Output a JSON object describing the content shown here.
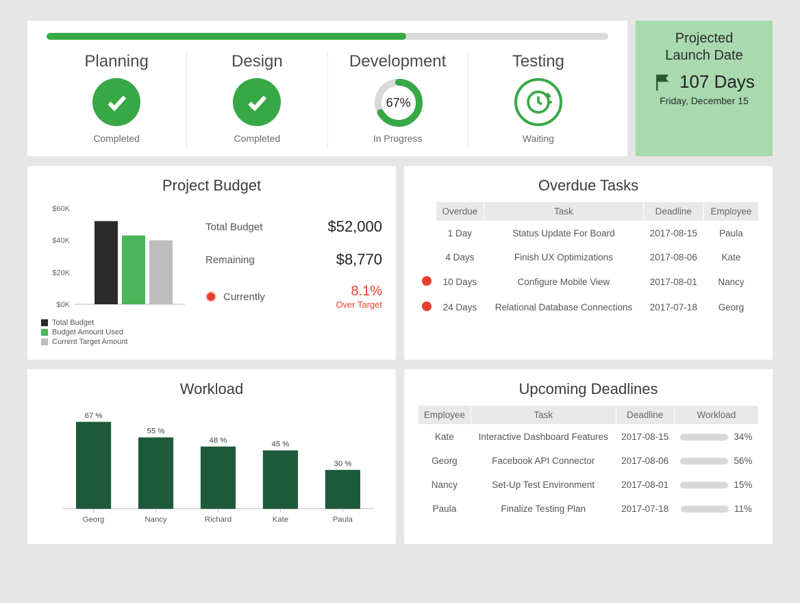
{
  "colors": {
    "green": "#37a845",
    "dark_green": "#22573b",
    "grey_bar": "#bdbdbd",
    "track": "#d9d9d9",
    "red": "#e83e2e",
    "yellow": "#e8b400",
    "launch_bg": "#a8d9af",
    "black_bar": "#2b2b2b"
  },
  "progress": {
    "percent": 64
  },
  "phases": [
    {
      "title": "Planning",
      "status": "Completed",
      "kind": "done"
    },
    {
      "title": "Design",
      "status": "Completed",
      "kind": "done"
    },
    {
      "title": "Development",
      "status": "In Progress",
      "kind": "progress",
      "percent": 67
    },
    {
      "title": "Testing",
      "status": "Waiting",
      "kind": "waiting"
    }
  ],
  "launch": {
    "title_l1": "Projected",
    "title_l2": "Launch Date",
    "days": "107 Days",
    "date": "Friday, December 15"
  },
  "budget": {
    "title": "Project Budget",
    "yticks": [
      "$60K",
      "$40K",
      "$20K",
      "$0K"
    ],
    "ymax": 60,
    "bars": [
      {
        "label": "Total Budget",
        "value": 52,
        "color": "#2b2b2b"
      },
      {
        "label": "Budget Amount Used",
        "value": 43,
        "color": "#4cb45a"
      },
      {
        "label": "Current Target Amount",
        "value": 40,
        "color": "#bdbdbd"
      }
    ],
    "stats": {
      "total_label": "Total Budget",
      "total_value": "$52,000",
      "remaining_label": "Remaining",
      "remaining_value": "$8,770",
      "currently_label": "Currently",
      "over_pct": "8.1%",
      "over_txt": "Over Target"
    }
  },
  "overdue": {
    "title": "Overdue Tasks",
    "headers": [
      "Overdue",
      "Task",
      "Deadline",
      "Employee"
    ],
    "rows": [
      {
        "severity": "yellow",
        "overdue": "1 Day",
        "task": "Status Update For Board",
        "deadline": "2017-08-15",
        "employee": "Paula"
      },
      {
        "severity": "yellow",
        "overdue": "4 Days",
        "task": "Finish UX Optimizations",
        "deadline": "2017-08-06",
        "employee": "Kate"
      },
      {
        "severity": "red",
        "overdue": "10 Days",
        "task": "Configure Mobile View",
        "deadline": "2017-08-01",
        "employee": "Nancy"
      },
      {
        "severity": "red",
        "overdue": "24 Days",
        "task": "Relational Database Connections",
        "deadline": "2017-07-18",
        "employee": "Georg"
      }
    ]
  },
  "workload": {
    "title": "Workload",
    "ymax": 70,
    "bar_color": "#1d5a3a",
    "bars": [
      {
        "name": "Georg",
        "pct": 67
      },
      {
        "name": "Nancy",
        "pct": 55
      },
      {
        "name": "Richard",
        "pct": 48
      },
      {
        "name": "Kate",
        "pct": 45
      },
      {
        "name": "Paula",
        "pct": 30
      }
    ]
  },
  "upcoming": {
    "title": "Upcoming Deadlines",
    "headers": [
      "Employee",
      "Task",
      "Deadline",
      "Workload"
    ],
    "rows": [
      {
        "employee": "Kate",
        "task": "Interactive Dashboard Features",
        "deadline": "2017-08-15",
        "workload": 34
      },
      {
        "employee": "Georg",
        "task": "Facebook API Connector",
        "deadline": "2017-08-06",
        "workload": 56
      },
      {
        "employee": "Nancy",
        "task": "Set-Up Test Environment",
        "deadline": "2017-08-01",
        "workload": 15
      },
      {
        "employee": "Paula",
        "task": "Finalize Testing Plan",
        "deadline": "2017-07-18",
        "workload": 11
      }
    ]
  }
}
